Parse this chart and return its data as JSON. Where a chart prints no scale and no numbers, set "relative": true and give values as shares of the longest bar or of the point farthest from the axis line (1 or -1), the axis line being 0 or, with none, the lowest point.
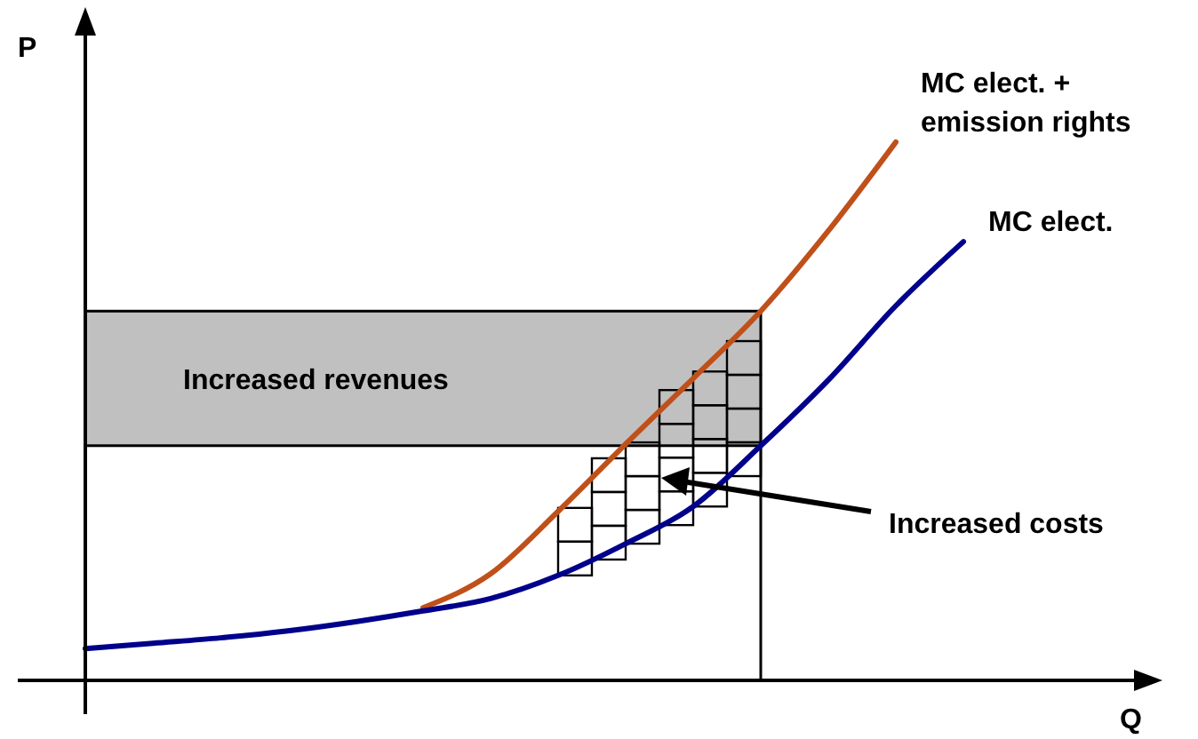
{
  "chart_data": {
    "type": "line",
    "relative": true,
    "xlabel": "Q",
    "ylabel": "P",
    "categories": [
      null,
      null,
      null,
      null,
      null,
      null,
      null,
      null,
      null,
      null,
      null,
      null,
      null,
      null,
      null
    ],
    "series": [
      {
        "name": "MC elect. + emission rights",
        "color": "#c0501a",
        "values": [
          null,
          null,
          null,
          null,
          null,
          0.135,
          0.198,
          0.314,
          0.439,
          0.561,
          0.686,
          0.835,
          1.0,
          null,
          null
        ]
      },
      {
        "name": "MC elect.",
        "color": "#00008b",
        "values": [
          0.059,
          0.069,
          0.079,
          0.092,
          0.109,
          0.129,
          0.152,
          0.195,
          0.254,
          0.323,
          0.436,
          0.558,
          0.696,
          0.815,
          null
        ]
      }
    ],
    "bands": [
      {
        "axis": "y",
        "from": 0.436,
        "to": 0.686,
        "label": "Increased revenues",
        "color": "#c0c0c0"
      }
    ],
    "annotations": [
      "Increased costs"
    ],
    "legend": false,
    "marker": "none",
    "line_style": "solid"
  }
}
